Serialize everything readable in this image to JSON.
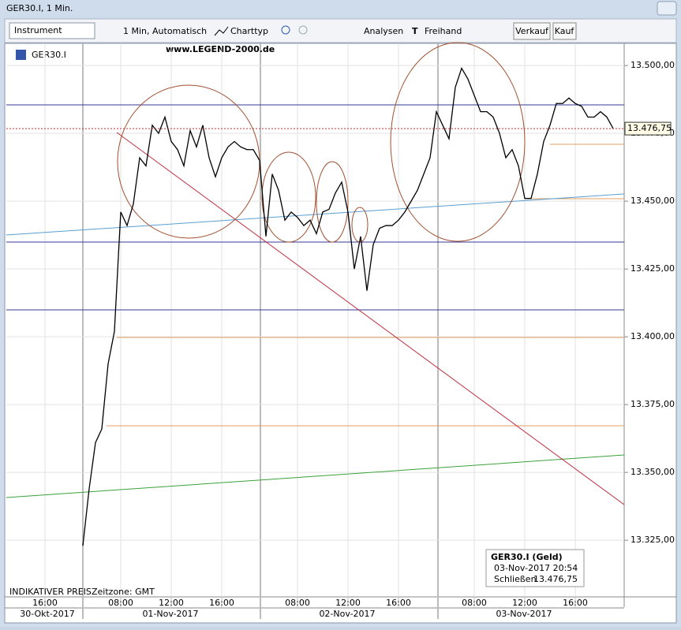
{
  "window": {
    "title": "GER30.I, 1 Min."
  },
  "toolbar": {
    "instrument": "Instrument",
    "interval": "1 Min, Automatisch",
    "charttype": "Charttyp",
    "analyses": "Analysen",
    "freehand": "Freihand",
    "sell": "Verkauf",
    "buy": "Kauf"
  },
  "watermark": "www.LEGEND-2000.de",
  "footer": {
    "indicative": "INDIKATIVER PREIS",
    "timezone": "Zeitzone: GMT"
  },
  "info_box": {
    "title": "GER30.I (Geld)",
    "datetime": "03-Nov-2017 20:54",
    "close_label": "Schließen",
    "close_value": "13.476,75"
  },
  "date_labels": [
    "30-Okt-2017",
    "01-Nov-2017",
    "02-Nov-2017",
    "03-Nov-2017"
  ],
  "chart_data": {
    "type": "line",
    "categories": [
      "16:00",
      null,
      null,
      null,
      null,
      null,
      null,
      null,
      null,
      null,
      null,
      null,
      "08:00",
      null,
      null,
      null,
      null,
      null,
      null,
      null,
      "12:00",
      null,
      null,
      null,
      null,
      null,
      null,
      null,
      "16:00",
      null,
      null,
      null,
      null,
      null,
      null,
      null,
      null,
      null,
      null,
      null,
      "08:00",
      null,
      null,
      null,
      null,
      null,
      null,
      null,
      "12:00",
      null,
      null,
      null,
      null,
      null,
      null,
      null,
      "16:00",
      null,
      null,
      null,
      null,
      null,
      null,
      null,
      null,
      null,
      null,
      null,
      "08:00",
      null,
      null,
      null,
      null,
      null,
      null,
      null,
      "12:00",
      null,
      null,
      null,
      null,
      null,
      null,
      null,
      "16:00",
      null,
      null,
      null,
      null,
      null,
      null
    ],
    "series": [
      {
        "name": "GER30.I",
        "color": "#000000",
        "values": [
          null,
          null,
          null,
          null,
          null,
          null,
          13323,
          13344,
          13361,
          13366,
          13390,
          13402,
          13446,
          13441,
          13449,
          13466,
          13463,
          13478,
          13475,
          13481,
          13472,
          13469,
          13463,
          13476,
          13470,
          13478,
          13466,
          13459,
          13466,
          13470,
          13472,
          13470,
          13469,
          13469,
          13465,
          13437,
          13460,
          13454,
          13443,
          13446,
          13444,
          13441,
          13443,
          13438,
          13446,
          13447,
          13453,
          13457,
          13446,
          13425,
          13437,
          13417,
          13434,
          13440,
          13441,
          13441,
          13443,
          13446,
          13450,
          13454,
          13460,
          13466,
          13483,
          13478,
          13473,
          13492,
          13499,
          13495,
          13489,
          13483,
          13483,
          13481,
          13475,
          13466,
          13469,
          13463,
          13451,
          13451,
          13460,
          13472,
          13478,
          13486,
          13486,
          13488,
          13486,
          13485,
          13481,
          13481,
          13483,
          13481,
          13476.75
        ]
      }
    ],
    "ylim": [
      13307.6,
      13507.3
    ],
    "yticks": [
      {
        "value": 13325,
        "label": "13.325,00"
      },
      {
        "value": 13350,
        "label": "13.350,00"
      },
      {
        "value": 13375,
        "label": "13.375,00"
      },
      {
        "value": 13400,
        "label": "13.400,00"
      },
      {
        "value": 13425,
        "label": "13.425,00"
      },
      {
        "value": 13450,
        "label": "13.450,00"
      },
      {
        "value": 13475,
        "label": "13.475,00"
      },
      {
        "value": 13500,
        "label": "13.500,00"
      }
    ],
    "last_price": {
      "value": 13476.75,
      "label": "13.476,75"
    },
    "grid": true
  }
}
